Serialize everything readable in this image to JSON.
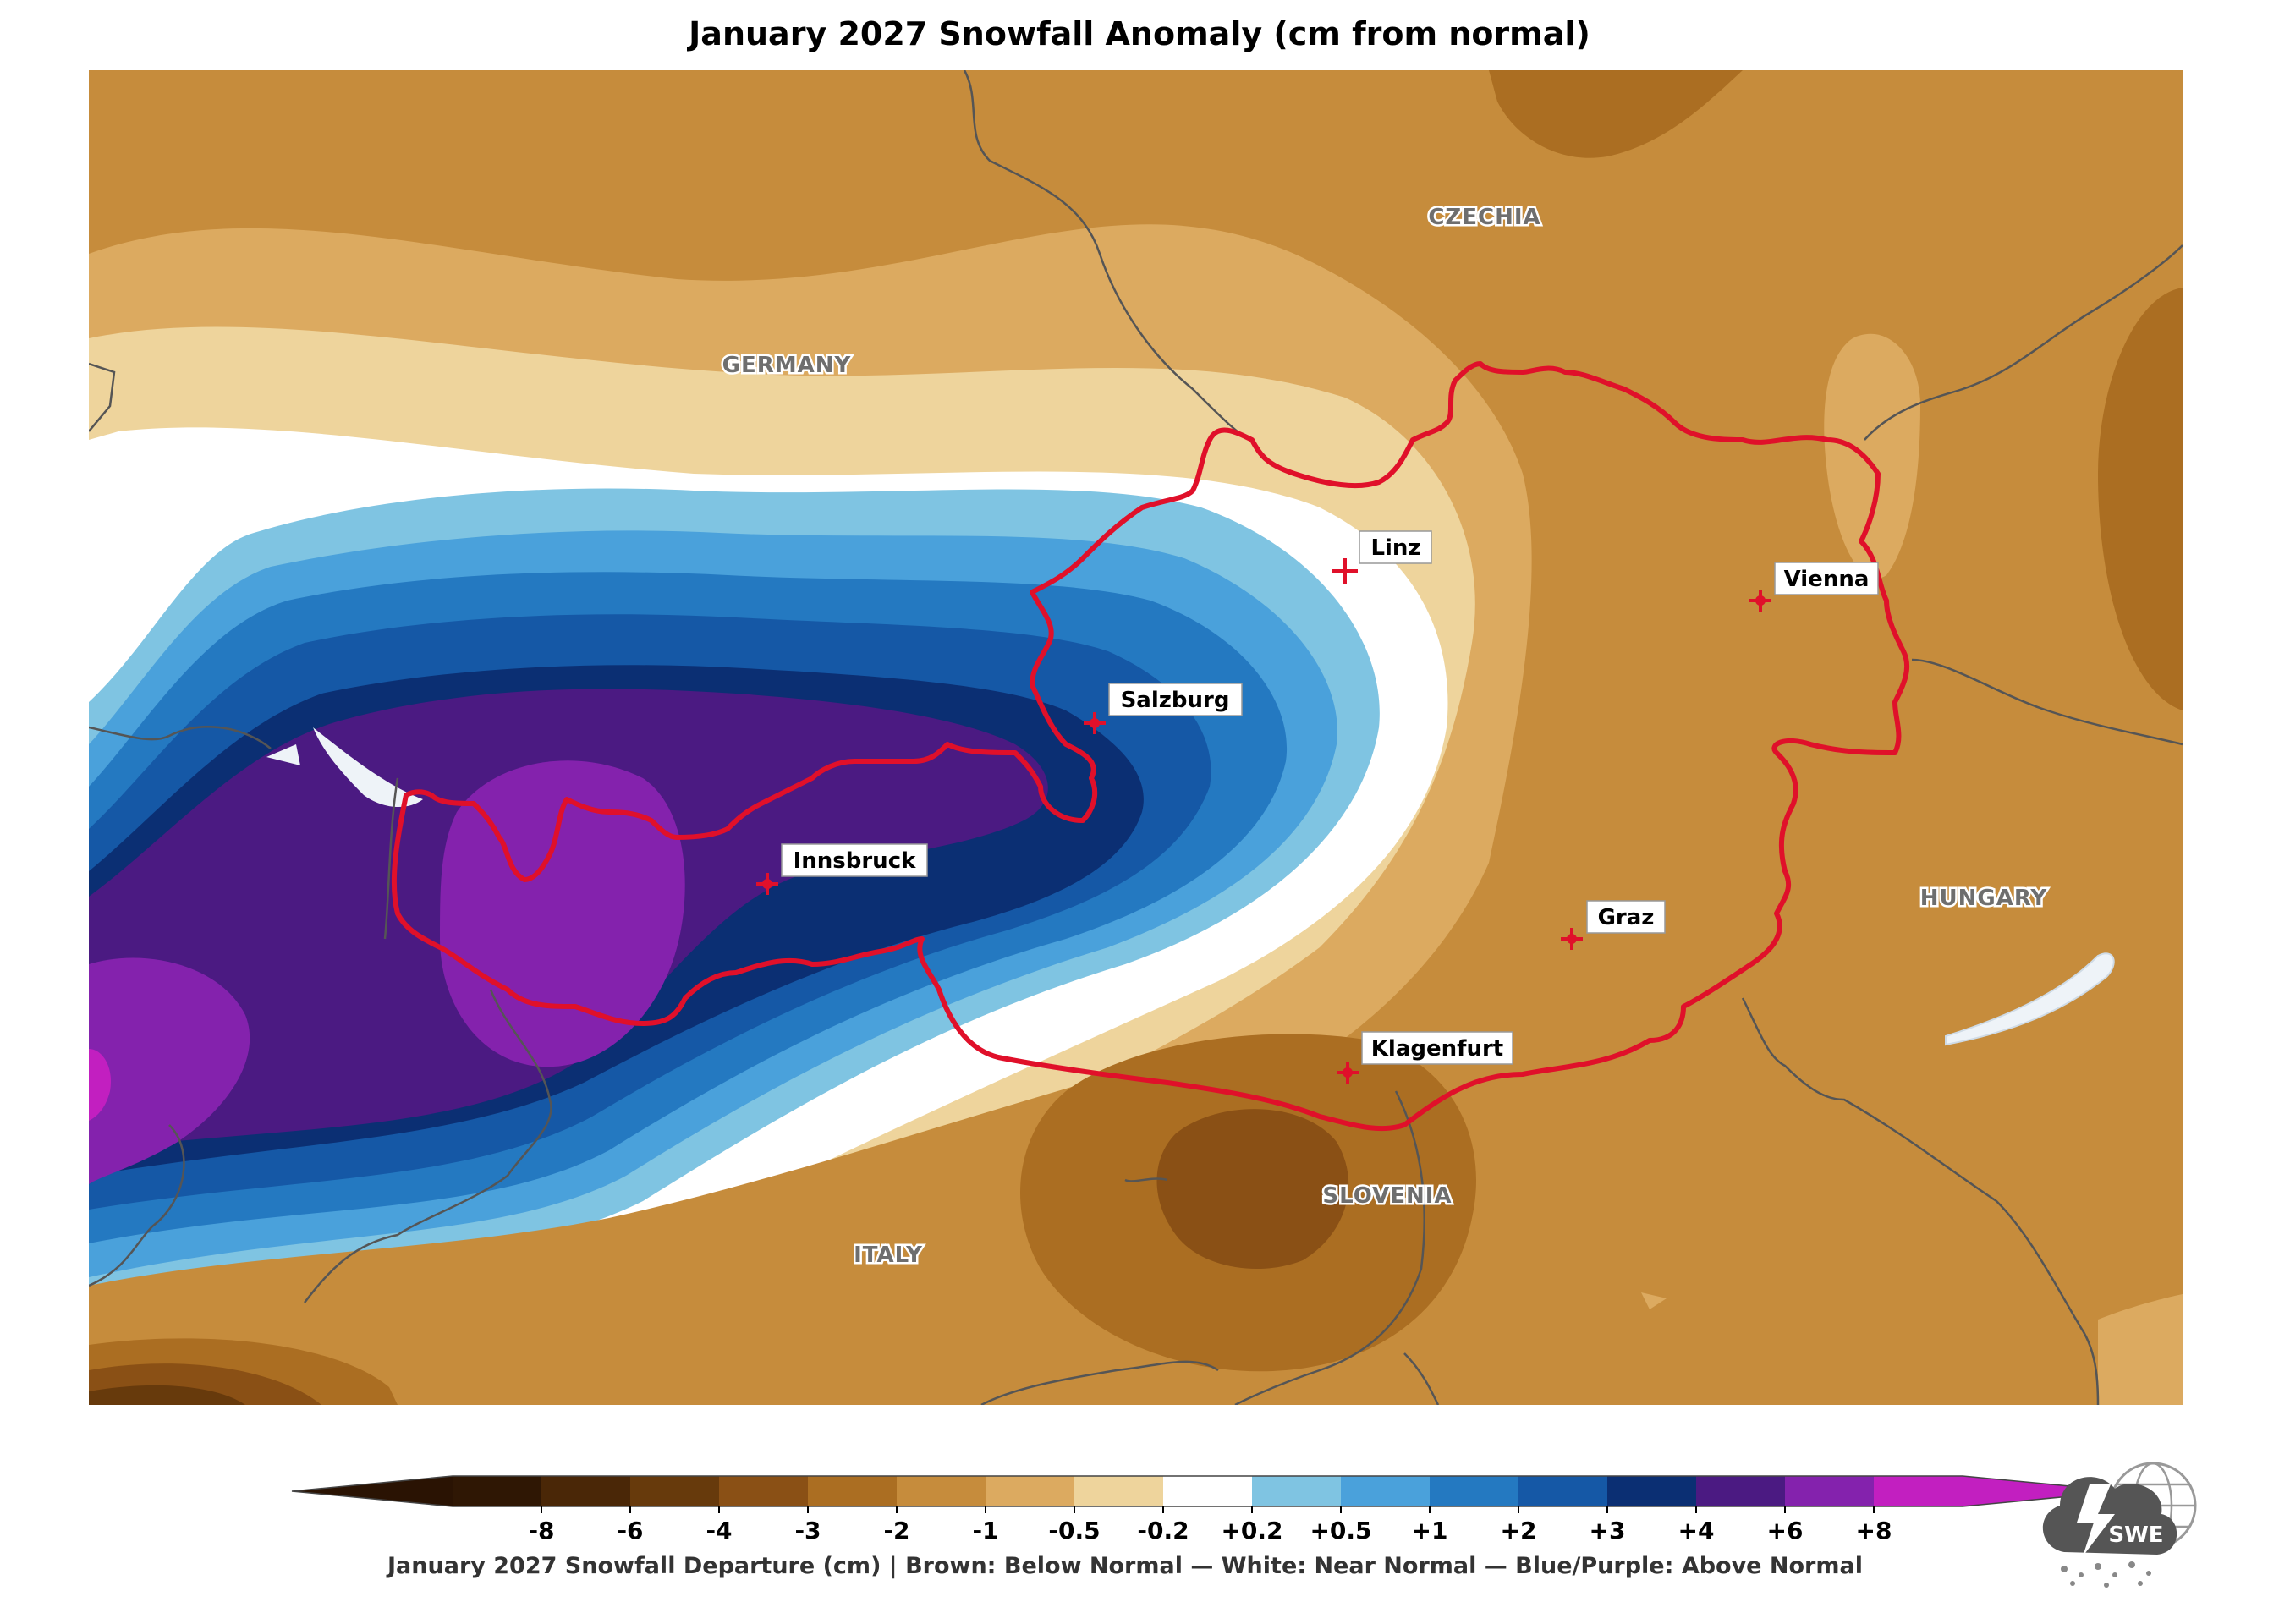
{
  "title": "January 2027 Snowfall Anomaly (cm from normal)",
  "countries": [
    {
      "name": "CZECHIA"
    },
    {
      "name": "GERMANY"
    },
    {
      "name": "HUNGARY"
    },
    {
      "name": "SLOVENIA"
    },
    {
      "name": "ITALY"
    }
  ],
  "cities": [
    {
      "name": "Linz"
    },
    {
      "name": "Vienna"
    },
    {
      "name": "Salzburg"
    },
    {
      "name": "Innsbruck"
    },
    {
      "name": "Graz"
    },
    {
      "name": "Klagenfurt"
    }
  ],
  "colorbar": {
    "ticks": [
      "-8",
      "-6",
      "-4",
      "-3",
      "-2",
      "-1",
      "-0.5",
      "-0.2",
      "+0.2",
      "+0.5",
      "+1",
      "+2",
      "+3",
      "+4",
      "+6",
      "+8"
    ],
    "colors": [
      "#2f1704",
      "#4a2707",
      "#673a0c",
      "#8a5015",
      "#ab6e22",
      "#c68c3c",
      "#dcaa60",
      "#eed49c",
      "#ffffff",
      "#7fc4e2",
      "#4aa1db",
      "#2479c1",
      "#1558a6",
      "#0b2f73",
      "#4b1a82",
      "#8422ad",
      "#c21fc0"
    ],
    "under_color": "#2a1303",
    "over_color": "#c21fc0",
    "caption": "January 2027 Snowfall Departure (cm)  |  Brown: Below Normal  —  White: Near Normal  —  Blue/Purple: Above Normal"
  },
  "logo_text": "SWE",
  "border_color": "#e0102a"
}
